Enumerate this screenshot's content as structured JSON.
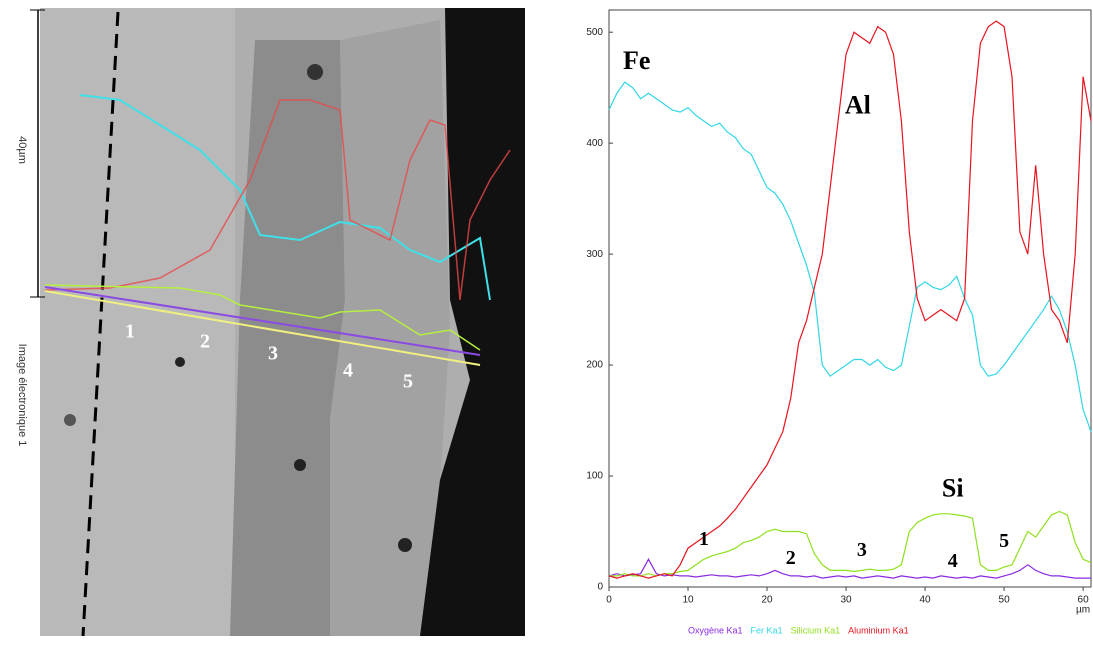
{
  "image": {
    "scale_label": "40µm",
    "caption": "Image électronique 1",
    "labels": [
      "1",
      "2",
      "3",
      "4",
      "5"
    ]
  },
  "chart_data": {
    "type": "line",
    "x_label": "µm",
    "x": [
      0,
      1,
      2,
      3,
      4,
      5,
      6,
      7,
      8,
      9,
      10,
      11,
      12,
      13,
      14,
      15,
      16,
      17,
      18,
      19,
      20,
      21,
      22,
      23,
      24,
      25,
      26,
      27,
      28,
      29,
      30,
      31,
      32,
      33,
      34,
      35,
      36,
      37,
      38,
      39,
      40,
      41,
      42,
      43,
      44,
      45,
      46,
      47,
      48,
      49,
      50,
      51,
      52,
      53,
      54,
      55,
      56,
      57,
      58,
      59,
      60,
      61
    ],
    "xlim": [
      0,
      61
    ],
    "xticks": [
      0,
      10,
      20,
      30,
      40,
      50,
      60
    ],
    "ylim": [
      0,
      520
    ],
    "yticks": [
      0,
      100,
      200,
      300,
      400,
      500
    ],
    "annotations": [
      "Fe",
      "Al",
      "Si",
      "1",
      "2",
      "3",
      "4",
      "5"
    ],
    "series": [
      {
        "name": "Oxygène Ka1",
        "color": "#8a2be2",
        "values": [
          10,
          12,
          10,
          11,
          12,
          25,
          12,
          10,
          11,
          10,
          10,
          9,
          10,
          11,
          10,
          10,
          9,
          10,
          11,
          10,
          12,
          15,
          12,
          10,
          10,
          9,
          10,
          8,
          9,
          10,
          9,
          10,
          8,
          9,
          10,
          9,
          8,
          10,
          9,
          8,
          9,
          8,
          10,
          9,
          8,
          9,
          8,
          10,
          9,
          8,
          10,
          12,
          15,
          20,
          15,
          12,
          10,
          10,
          9,
          8,
          8,
          8
        ]
      },
      {
        "name": "Fer Ka1",
        "color": "#33d6e6",
        "values": [
          430,
          445,
          455,
          450,
          440,
          445,
          440,
          435,
          430,
          428,
          432,
          425,
          420,
          415,
          418,
          410,
          405,
          395,
          390,
          375,
          360,
          355,
          345,
          330,
          310,
          290,
          265,
          200,
          190,
          195,
          200,
          205,
          205,
          200,
          205,
          198,
          195,
          200,
          235,
          270,
          275,
          270,
          268,
          272,
          280,
          260,
          245,
          200,
          190,
          192,
          200,
          210,
          220,
          230,
          240,
          250,
          262,
          250,
          230,
          200,
          160,
          140
        ]
      },
      {
        "name": "Silicium Ka1",
        "color": "#8fe01e",
        "values": [
          10,
          10,
          12,
          10,
          10,
          12,
          10,
          12,
          12,
          14,
          15,
          20,
          25,
          28,
          30,
          32,
          35,
          40,
          42,
          45,
          50,
          52,
          50,
          50,
          50,
          48,
          30,
          20,
          15,
          15,
          15,
          14,
          15,
          16,
          15,
          15,
          16,
          20,
          50,
          58,
          62,
          65,
          66,
          66,
          65,
          64,
          62,
          20,
          15,
          15,
          18,
          20,
          35,
          50,
          45,
          55,
          65,
          68,
          65,
          40,
          25,
          22
        ]
      },
      {
        "name": "Aluminium Ka1",
        "color": "#e8141e",
        "values": [
          10,
          8,
          10,
          12,
          10,
          8,
          10,
          12,
          10,
          20,
          35,
          40,
          45,
          50,
          55,
          62,
          70,
          80,
          90,
          100,
          110,
          125,
          140,
          170,
          220,
          240,
          270,
          300,
          360,
          420,
          480,
          500,
          495,
          490,
          505,
          500,
          480,
          420,
          320,
          260,
          240,
          245,
          250,
          245,
          240,
          260,
          420,
          490,
          505,
          510,
          505,
          460,
          320,
          300,
          380,
          300,
          250,
          240,
          220,
          300,
          460,
          420
        ]
      }
    ]
  }
}
